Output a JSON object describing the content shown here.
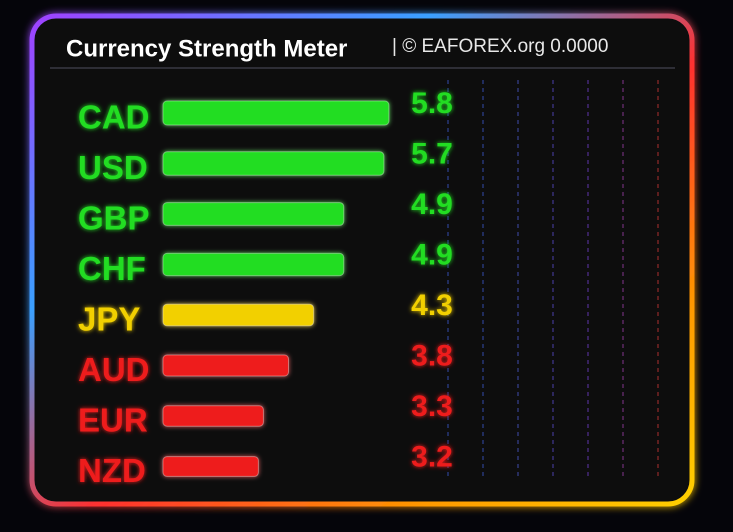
{
  "chart_data": {
    "type": "bar",
    "orientation": "horizontal",
    "title": "Currency Strength Meter",
    "subtitle": "| © EAFOREX.org 0.0000",
    "categories": [
      "CAD",
      "USD",
      "GBP",
      "CHF",
      "JPY",
      "AUD",
      "EUR",
      "NZD"
    ],
    "values": [
      5.8,
      5.7,
      4.9,
      4.9,
      4.3,
      3.8,
      3.3,
      3.2
    ],
    "colors": [
      "#22dd22",
      "#22dd22",
      "#22dd22",
      "#22dd22",
      "#f2d000",
      "#ee1c1c",
      "#ee1c1c",
      "#ee1c1c"
    ],
    "xlim": [
      1.3,
      11.3
    ]
  }
}
